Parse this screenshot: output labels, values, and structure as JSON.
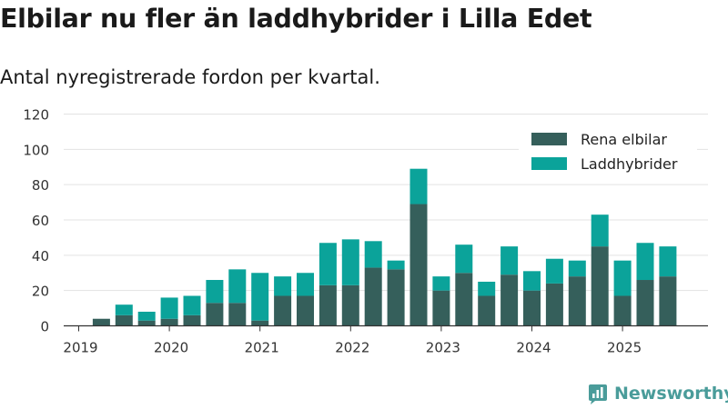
{
  "chart_data": {
    "type": "bar",
    "stacked": true,
    "title": "Elbilar nu fler än laddhybrider i Lilla Edet",
    "subtitle": "Antal nyregistrerade fordon per kvartal.",
    "xlabel": "",
    "ylabel": "",
    "ylim": [
      0,
      120
    ],
    "y_ticks": [
      "0",
      "20",
      "40",
      "60",
      "80",
      "100",
      "120"
    ],
    "x_ticks": [
      "2019",
      "2020",
      "2021",
      "2022",
      "2023",
      "2024",
      "2025"
    ],
    "grid": true,
    "legend_position": "top-right",
    "categories": [
      "2019 Q1",
      "2019 Q2",
      "2019 Q3",
      "2019 Q4",
      "2020 Q1",
      "2020 Q2",
      "2020 Q3",
      "2020 Q4",
      "2021 Q1",
      "2021 Q2",
      "2021 Q3",
      "2021 Q4",
      "2022 Q1",
      "2022 Q2",
      "2022 Q3",
      "2022 Q4",
      "2023 Q1",
      "2023 Q2",
      "2023 Q3",
      "2023 Q4",
      "2024 Q1",
      "2024 Q2",
      "2024 Q3",
      "2024 Q4",
      "2025 Q1",
      "2025 Q2",
      "2025 Q3"
    ],
    "series": [
      {
        "name": "Rena elbilar",
        "color": "#355f5b",
        "values": [
          0,
          4,
          6,
          3,
          4,
          6,
          13,
          13,
          3,
          17,
          17,
          23,
          23,
          33,
          32,
          69,
          20,
          30,
          17,
          29,
          20,
          24,
          28,
          45,
          17,
          26,
          28
        ]
      },
      {
        "name": "Laddhybrider",
        "color": "#0ba39a",
        "values": [
          0,
          0,
          6,
          5,
          12,
          11,
          13,
          19,
          27,
          11,
          13,
          24,
          26,
          15,
          5,
          20,
          8,
          16,
          8,
          16,
          11,
          14,
          9,
          18,
          20,
          21,
          17
        ]
      }
    ]
  },
  "brand": {
    "name": "Newsworthy",
    "logo_icon": "bar-chart-logo-icon",
    "color": "#4a9c9a"
  }
}
